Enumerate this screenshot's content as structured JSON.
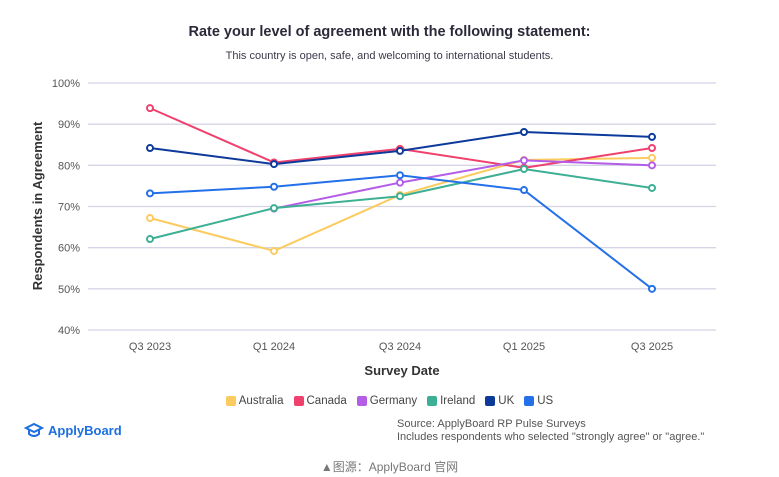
{
  "chart_data": {
    "type": "line",
    "title": "Rate your level of agreement with the following statement:",
    "subtitle": "This country is open, safe, and welcoming to international students.",
    "xlabel": "Survey Date",
    "ylabel": "Respondents in Agreement",
    "categories": [
      "Q3 2023",
      "Q1 2024",
      "Q3 2024",
      "Q1 2025",
      "Q3 2025"
    ],
    "ylim": [
      40,
      100
    ],
    "yticks": [
      "40%",
      "50%",
      "60%",
      "70%",
      "80%",
      "90%",
      "100%"
    ],
    "grid": true,
    "legend_position": "bottom",
    "series": [
      {
        "name": "Australia",
        "color": "#fccb5f",
        "values": [
          67.2,
          59.2,
          72.8,
          81.3,
          81.8
        ]
      },
      {
        "name": "Canada",
        "color": "#f0406e",
        "values": [
          93.9,
          80.7,
          84.0,
          79.4,
          84.2
        ]
      },
      {
        "name": "Germany",
        "color": "#b45ee8",
        "values": [
          null,
          69.5,
          75.8,
          81.2,
          80.0
        ]
      },
      {
        "name": "Ireland",
        "color": "#3daf94",
        "values": [
          62.1,
          69.6,
          72.5,
          79.1,
          74.5
        ]
      },
      {
        "name": "UK",
        "color": "#0d3a9a",
        "values": [
          84.2,
          80.3,
          83.5,
          88.1,
          86.9
        ]
      },
      {
        "name": "US",
        "color": "#2470e8",
        "values": [
          73.2,
          74.8,
          77.6,
          74.0,
          50.0
        ]
      }
    ]
  },
  "footer": {
    "logo": "ApplyBoard",
    "source": "Source: ApplyBoard RP Pulse Surveys",
    "note": "Includes respondents who selected \"strongly agree\" or \"agree.\"",
    "caption": "▲图源：ApplyBoard 官网"
  }
}
